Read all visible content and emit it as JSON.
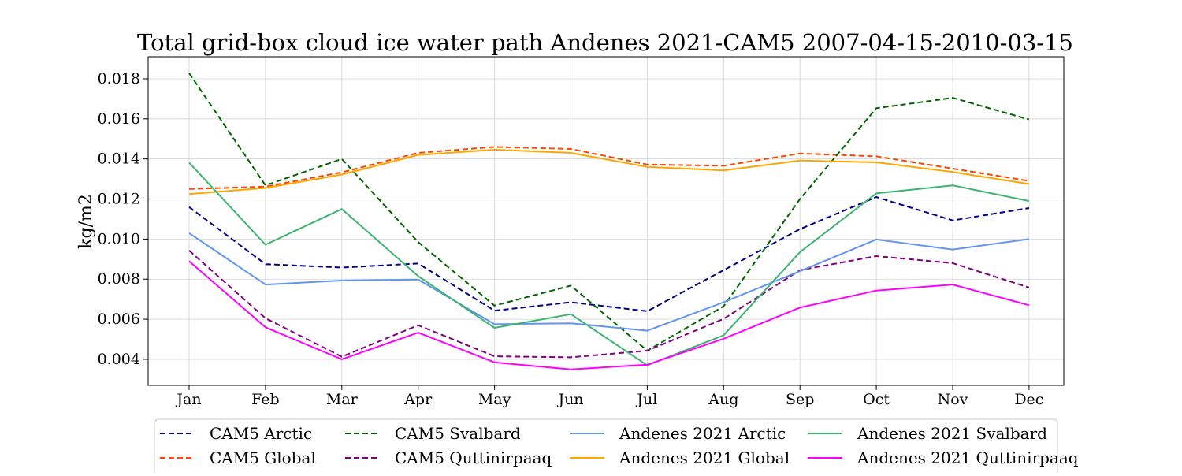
{
  "chart_data": {
    "type": "line",
    "title": "Total grid-box cloud ice water path Andenes 2021-CAM5 2007-04-15-2010-03-15",
    "xlabel": "",
    "ylabel": "kg/m2",
    "categories": [
      "Jan",
      "Feb",
      "Mar",
      "Apr",
      "May",
      "Jun",
      "Jul",
      "Aug",
      "Sep",
      "Oct",
      "Nov",
      "Dec"
    ],
    "ylim": [
      0.0027,
      0.0191
    ],
    "yticks": [
      0.004,
      0.006,
      0.008,
      0.01,
      0.012,
      0.014,
      0.016,
      0.018
    ],
    "ytick_labels": [
      "0.004",
      "0.006",
      "0.008",
      "0.010",
      "0.012",
      "0.014",
      "0.016",
      "0.018"
    ],
    "grid": true,
    "legend_placement": "bottom-center",
    "series": [
      {
        "name": "CAM5 Arctic",
        "color": "#00008b",
        "dashed": true,
        "values": [
          0.0116,
          0.00875,
          0.00858,
          0.00878,
          0.00643,
          0.00685,
          0.0064,
          0.00845,
          0.0105,
          0.0121,
          0.01093,
          0.01155
        ]
      },
      {
        "name": "CAM5 Global",
        "color": "#ff4500",
        "dashed": true,
        "values": [
          0.0125,
          0.01262,
          0.01333,
          0.0143,
          0.0146,
          0.0145,
          0.01372,
          0.01366,
          0.01427,
          0.01413,
          0.01352,
          0.0129
        ]
      },
      {
        "name": "CAM5 Svalbard",
        "color": "#006400",
        "dashed": true,
        "values": [
          0.01828,
          0.01268,
          0.014,
          0.00985,
          0.00668,
          0.00768,
          0.00443,
          0.00665,
          0.012,
          0.01653,
          0.01705,
          0.01597
        ]
      },
      {
        "name": "CAM5 Quttinirpaaq",
        "color": "#800080",
        "dashed": true,
        "values": [
          0.00943,
          0.00605,
          0.00413,
          0.0057,
          0.00415,
          0.0041,
          0.00443,
          0.00602,
          0.00845,
          0.00915,
          0.0088,
          0.00758
        ]
      },
      {
        "name": "Andenes 2021 Arctic",
        "color": "#6495ed",
        "dashed": false,
        "values": [
          0.0103,
          0.00773,
          0.00793,
          0.00798,
          0.00575,
          0.0058,
          0.00543,
          0.00685,
          0.0084,
          0.00998,
          0.00948,
          0.01
        ]
      },
      {
        "name": "Andenes 2021 Global",
        "color": "#ffa500",
        "dashed": false,
        "values": [
          0.01225,
          0.01255,
          0.01322,
          0.0142,
          0.01446,
          0.0143,
          0.0136,
          0.01343,
          0.01392,
          0.01383,
          0.01335,
          0.01275
        ]
      },
      {
        "name": "Andenes 2021 Svalbard",
        "color": "#3cb371",
        "dashed": false,
        "values": [
          0.01382,
          0.00972,
          0.0115,
          0.00815,
          0.00557,
          0.00625,
          0.0037,
          0.0052,
          0.00935,
          0.01228,
          0.01268,
          0.0119
        ]
      },
      {
        "name": "Andenes 2021 Quttinirpaaq",
        "color": "#ff00ff",
        "dashed": false,
        "values": [
          0.0089,
          0.0056,
          0.004,
          0.00533,
          0.00385,
          0.0035,
          0.00373,
          0.00503,
          0.00658,
          0.00743,
          0.00773,
          0.0067
        ]
      }
    ]
  }
}
